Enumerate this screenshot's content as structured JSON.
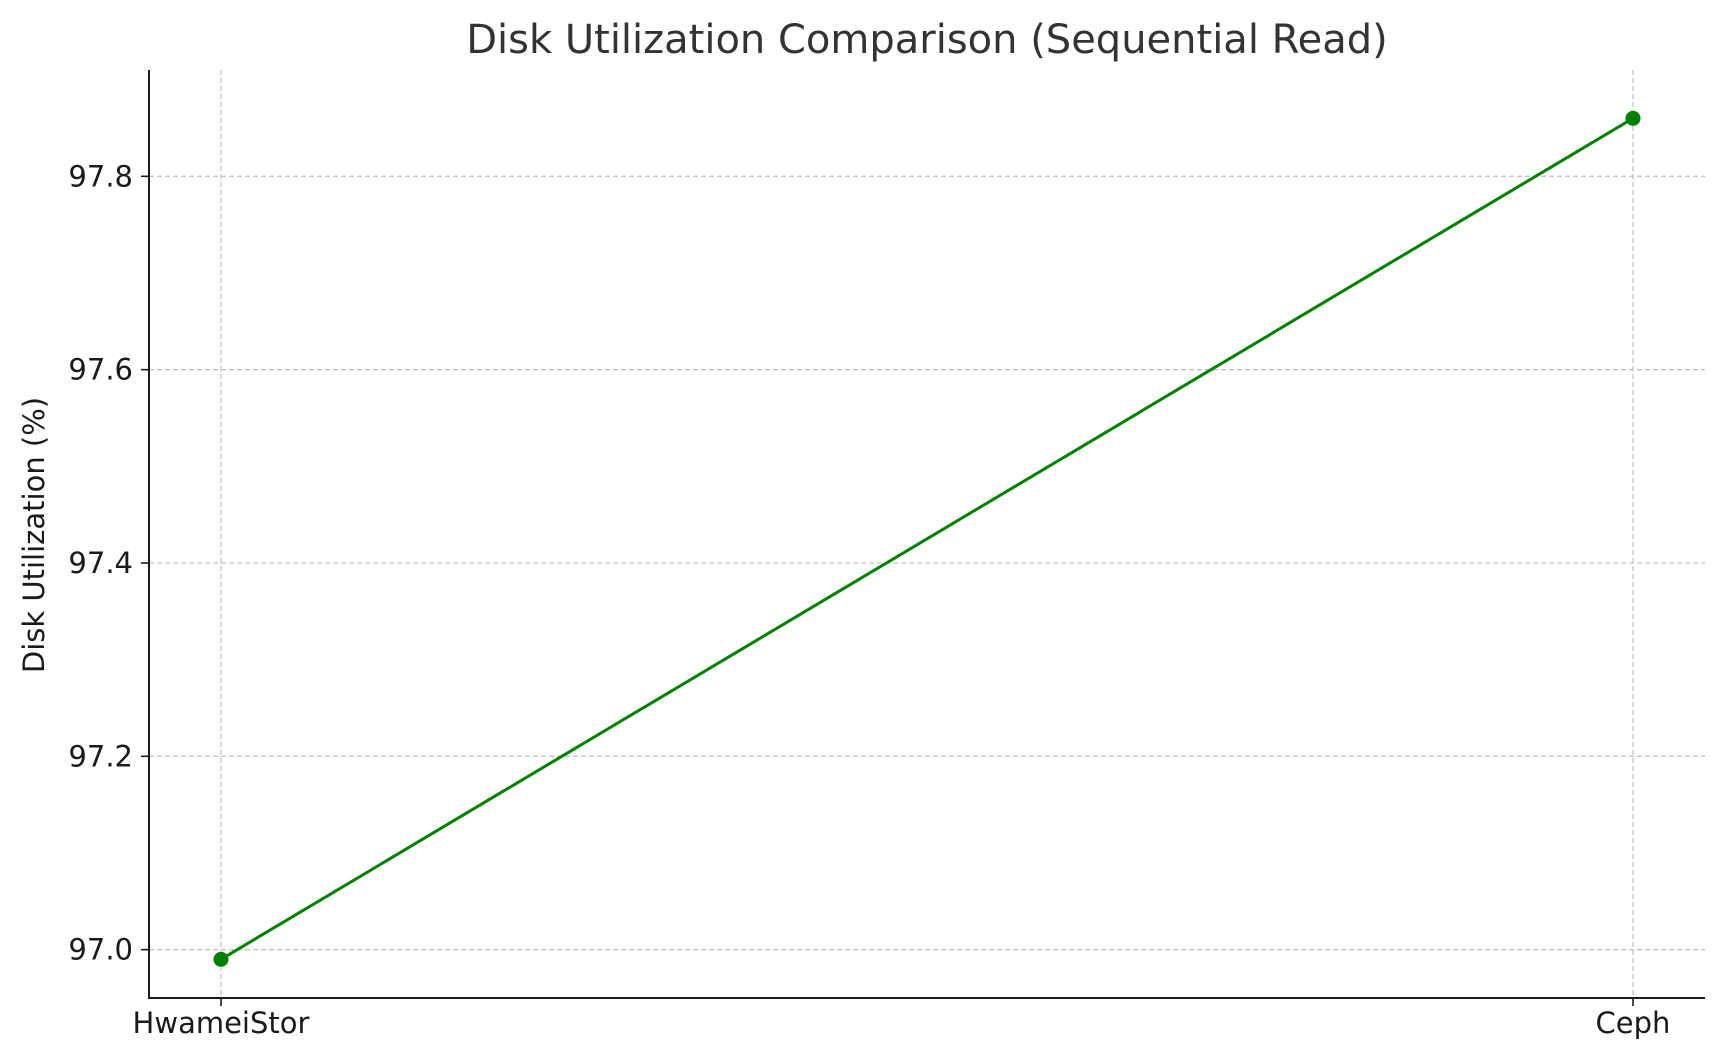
{
  "chart_data": {
    "type": "line",
    "title": "Disk Utilization Comparison (Sequential Read)",
    "xlabel": "",
    "ylabel": "Disk Utilization (%)",
    "categories": [
      "HwameiStor",
      "Ceph"
    ],
    "series": [
      {
        "values": [
          96.99,
          97.86
        ],
        "color": "#008000",
        "marker": "circle"
      }
    ],
    "ylim": [
      96.95,
      97.91
    ],
    "yticks": [
      "97.0",
      "97.2",
      "97.4",
      "97.6",
      "97.8"
    ],
    "ytick_values": [
      97.0,
      97.2,
      97.4,
      97.6,
      97.8
    ],
    "grid": true,
    "grid_style": "dashed",
    "legend": "none"
  }
}
